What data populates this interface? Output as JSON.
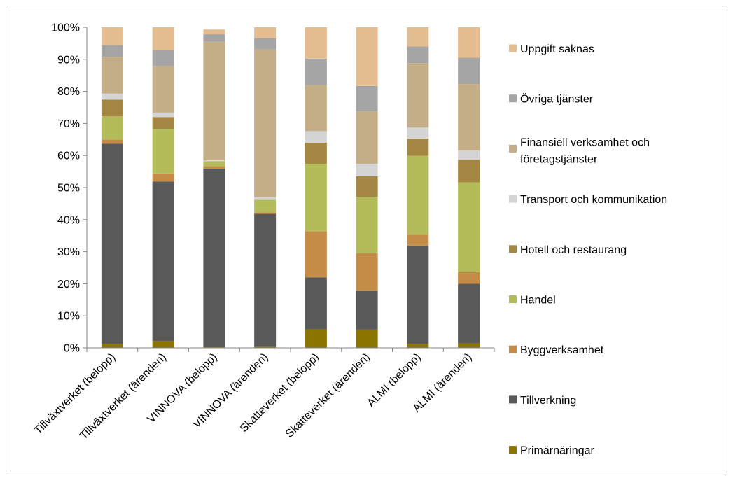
{
  "chart_data": {
    "type": "bar",
    "stacked": true,
    "categories": [
      "Tillväxtverket (belopp)",
      "Tillväxtverket (ärenden)",
      "VINNOVA (belopp)",
      "VINNOVA (ärenden)",
      "Skatteverket (belopp)",
      "Skatteverket (ärenden)",
      "ALMI (belopp)",
      "ALMI (ärenden)"
    ],
    "ylim": [
      0,
      100
    ],
    "yticks": [
      "0%",
      "10%",
      "20%",
      "30%",
      "40%",
      "50%",
      "60%",
      "70%",
      "80%",
      "90%",
      "100%"
    ],
    "grid": false,
    "legend_position": "right",
    "series": [
      {
        "name": "Primärnäringar",
        "color": "#8c7400",
        "values": [
          1.3,
          2.1,
          0.2,
          0.3,
          5.8,
          5.7,
          1.3,
          1.4
        ]
      },
      {
        "name": "Tillverkning",
        "color": "#595959",
        "values": [
          62.4,
          49.8,
          55.7,
          41.5,
          16.2,
          12.0,
          30.6,
          18.6
        ]
      },
      {
        "name": "Byggverksamhet",
        "color": "#c48c47",
        "values": [
          1.3,
          2.5,
          0.8,
          0.5,
          14.4,
          11.8,
          3.4,
          3.6
        ]
      },
      {
        "name": "Handel",
        "color": "#b4bc5a",
        "values": [
          7.2,
          13.9,
          1.5,
          3.9,
          21.0,
          17.6,
          24.6,
          28.0
        ]
      },
      {
        "name": "Hotell och restaurang",
        "color": "#a58744",
        "values": [
          5.2,
          3.7,
          0.0,
          0.0,
          6.6,
          6.4,
          5.4,
          7.1
        ]
      },
      {
        "name": "Transport och kommunikation",
        "color": "#d4d4d4",
        "values": [
          1.9,
          1.4,
          0.3,
          0.8,
          3.6,
          3.9,
          3.4,
          2.9
        ]
      },
      {
        "name": "Finansiell verksamhet och företagstjänster",
        "color": "#c3ae87",
        "values": [
          11.5,
          14.5,
          37.0,
          46.1,
          14.4,
          16.4,
          20.1,
          20.7
        ]
      },
      {
        "name": "Övriga tjänster",
        "color": "#a5a5a5",
        "values": [
          3.6,
          4.9,
          2.3,
          3.5,
          8.2,
          7.9,
          5.2,
          8.2
        ]
      },
      {
        "name": "Uppgift saknas",
        "color": "#e4bd90",
        "values": [
          5.6,
          7.2,
          1.5,
          3.4,
          9.8,
          18.3,
          6.0,
          9.5
        ]
      }
    ]
  }
}
